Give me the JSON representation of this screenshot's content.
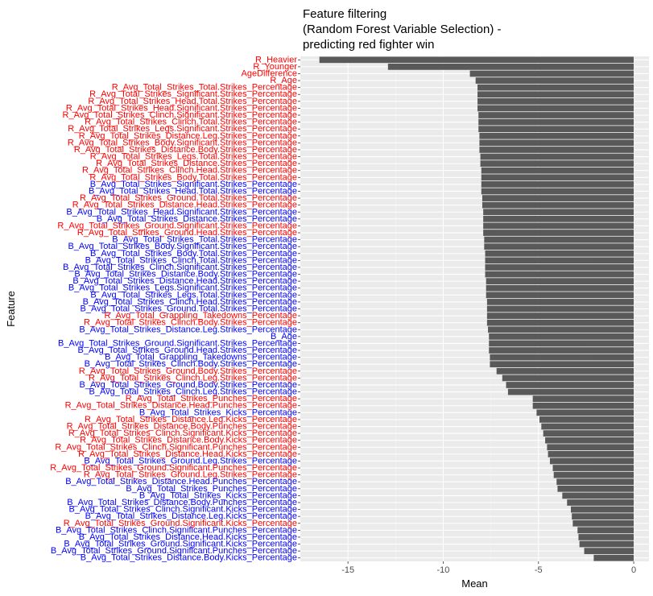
{
  "chart_data": {
    "type": "bar",
    "orientation": "horizontal",
    "title": [
      "Feature filtering",
      "(Random Forest Variable Selection) -",
      "predicting red fighter win"
    ],
    "xlabel": "Mean",
    "ylabel": "Feature",
    "xlim": [
      -17.5,
      0.8
    ],
    "xticks": [
      -15,
      -10,
      -5,
      0
    ],
    "xtick_labels": [
      "-15",
      "-10",
      "-5",
      "0"
    ],
    "grid": true,
    "colors": {
      "bar": "#595959",
      "panel": "#ebebeb",
      "grid_major": "#ffffff",
      "grid_minor": "#f5f5f5",
      "red_label": "#ff0000",
      "blue_label": "#0000ff"
    },
    "categories": [
      "R_Heavier",
      "R_Younger",
      "AgeDifference",
      "R_Age",
      "R_Avg_Total_Strikes_Total.Strikes_Percentage",
      "R_Avg_Total_Strikes_Significant.Strikes_Percentage",
      "R_Avg_Total_Strikes_Head.Total.Strikes_Percentage",
      "R_Avg_Total_Strikes_Head.Significant.Strikes_Percentage",
      "R_Avg_Total_Strikes_Clinch.Significant.Strikes_Percentage",
      "R_Avg_Total_Strikes_Clinch.Total.Strikes_Percentage",
      "R_Avg_Total_Strikes_Legs.Significant.Strikes_Percentage",
      "R_Avg_Total_Strikes_Distance.Leg.Strikes_Percentage",
      "R_Avg_Total_Strikes_Body.Significant.Strikes_Percentage",
      "R_Avg_Total_Strikes_Distance.Body.Strikes_Percentage",
      "R_Avg_Total_Strikes_Legs.Total.Strikes_Percentage",
      "R_Avg_Total_Strikes_Distance.Strikes_Percentage",
      "R_Avg_Total_Strikes_Clinch.Head.Strikes_Percentage",
      "R_Avg_Total_Strikes_Body.Total.Strikes_Percentage",
      "B_Avg_Total_Strikes_Significant.Strikes_Percentage",
      "B_Avg_Total_Strikes_Head.Total.Strikes_Percentage",
      "R_Avg_Total_Strikes_Ground.Total.Strikes_Percentage",
      "R_Avg_Total_Strikes_Distance.Head.Strikes_Percentage",
      "B_Avg_Total_Strikes_Head.Significant.Strikes_Percentage",
      "B_Avg_Total_Strikes_Distance.Strikes_Percentage",
      "R_Avg_Total_Strikes_Ground.Significant.Strikes_Percentage",
      "R_Avg_Total_Strikes_Ground.Head.Strikes_Percentage",
      "B_Avg_Total_Strikes_Total.Strikes_Percentage",
      "B_Avg_Total_Strikes_Body.Significant.Strikes_Percentage",
      "B_Avg_Total_Strikes_Body.Total.Strikes_Percentage",
      "B_Avg_Total_Strikes_Clinch.Total.Strikes_Percentage",
      "B_Avg_Total_Strikes_Clinch.Significant.Strikes_Percentage",
      "B_Avg_Total_Strikes_Distance.Body.Strikes_Percentage",
      "B_Avg_Total_Strikes_Distance.Head.Strikes_Percentage",
      "B_Avg_Total_Strikes_Legs.Significant.Strikes_Percentage",
      "B_Avg_Total_Strikes_Legs.Total.Strikes_Percentage",
      "B_Avg_Total_Strikes_Clinch.Head.Strikes_Percentage",
      "B_Avg_Total_Strikes_Ground.Total.Strikes_Percentage",
      "R_Avg_Total_Grappling_Takedowns_Percentage",
      "R_Avg_Total_Strikes_Clinch.Body.Strikes_Percentage",
      "B_Avg_Total_Strikes_Distance.Leg.Strikes_Percentage",
      "B_Age",
      "B_Avg_Total_Strikes_Ground.Significant.Strikes_Percentage",
      "B_Avg_Total_Strikes_Ground.Head.Strikes_Percentage",
      "B_Avg_Total_Grappling_Takedowns_Percentage",
      "B_Avg_Total_Strikes_Clinch.Body.Strikes_Percentage",
      "R_Avg_Total_Strikes_Ground.Body.Strikes_Percentage",
      "R_Avg_Total_Strikes_Clinch.Leg.Strikes_Percentage",
      "B_Avg_Total_Strikes_Ground.Body.Strikes_Percentage",
      "B_Avg_Total_Strikes_Clinch.Leg.Strikes_Percentage",
      "R_Avg_Total_Strikes_Punches_Percentage",
      "R_Avg_Total_Strikes_Distance.Head.Punches_Percentage",
      "B_Avg_Total_Strikes_Kicks_Percentage",
      "R_Avg_Total_Strikes_Distance.Leg.Kicks_Percentage",
      "R_Avg_Total_Strikes_Distance.Body.Punches_Percentage",
      "R_Avg_Total_Strikes_Clinch.Significant.Kicks_Percentage",
      "R_Avg_Total_Strikes_Distance.Body.Kicks_Percentage",
      "R_Avg_Total_Strikes_Clinch.Significant.Punches_Percentage",
      "R_Avg_Total_Strikes_Distance.Head.Kicks_Percentage",
      "B_Avg_Total_Strikes_Ground.Leg.Strikes_Percentage",
      "R_Avg_Total_Strikes_Ground.Significant.Punches_Percentage",
      "R_Avg_Total_Strikes_Ground.Leg.Strikes_Percentage",
      "B_Avg_Total_Strikes_Distance.Head.Punches_Percentage",
      "B_Avg_Total_Strikes_Punches_Percentage",
      "B_Avg_Total_Strikes_Kicks_Percentage",
      "B_Avg_Total_Strikes_Distance.Body.Punches_Percentage",
      "B_Avg_Total_Strikes_Clinch.Significant.Kicks_Percentage",
      "B_Avg_Total_Strikes_Distance.Leg.Kicks_Percentage",
      "R_Avg_Total_Strikes_Ground.Significant.Kicks_Percentage",
      "B_Avg_Total_Strikes_Clinch.Significant.Punches_Percentage",
      "B_Avg_Total_Strikes_Distance.Head.Kicks_Percentage",
      "B_Avg_Total_Strikes_Ground.Significant.Kicks_Percentage",
      "B_Avg_Total_Strikes_Ground.Significant.Punches_Percentage",
      "B_Avg_Total_Strikes_Distance.Body.Kicks_Percentage"
    ],
    "label_colors": [
      "red",
      "red",
      "red",
      "red",
      "red",
      "red",
      "red",
      "red",
      "red",
      "red",
      "red",
      "red",
      "red",
      "red",
      "red",
      "red",
      "red",
      "red",
      "blue",
      "blue",
      "red",
      "red",
      "blue",
      "blue",
      "red",
      "red",
      "blue",
      "blue",
      "blue",
      "blue",
      "blue",
      "blue",
      "blue",
      "blue",
      "blue",
      "blue",
      "blue",
      "red",
      "red",
      "blue",
      "blue",
      "blue",
      "blue",
      "blue",
      "blue",
      "red",
      "red",
      "blue",
      "blue",
      "red",
      "red",
      "blue",
      "red",
      "red",
      "red",
      "red",
      "red",
      "red",
      "blue",
      "red",
      "red",
      "blue",
      "blue",
      "blue",
      "blue",
      "blue",
      "blue",
      "red",
      "blue",
      "blue",
      "blue",
      "blue",
      "blue"
    ],
    "values": [
      -16.5,
      -12.9,
      -8.6,
      -8.3,
      -8.2,
      -8.2,
      -8.2,
      -8.2,
      -8.15,
      -8.15,
      -8.15,
      -8.1,
      -8.1,
      -8.1,
      -8.05,
      -8.05,
      -8.0,
      -8.0,
      -8.0,
      -8.0,
      -7.95,
      -7.95,
      -7.9,
      -7.9,
      -7.9,
      -7.9,
      -7.85,
      -7.85,
      -7.8,
      -7.8,
      -7.8,
      -7.8,
      -7.75,
      -7.75,
      -7.75,
      -7.7,
      -7.7,
      -7.7,
      -7.7,
      -7.65,
      -7.6,
      -7.6,
      -7.6,
      -7.55,
      -7.55,
      -7.2,
      -6.9,
      -6.7,
      -6.6,
      -5.3,
      -5.3,
      -5.1,
      -4.95,
      -4.85,
      -4.75,
      -4.65,
      -4.55,
      -4.5,
      -4.4,
      -4.25,
      -4.2,
      -4.05,
      -4.0,
      -3.75,
      -3.5,
      -3.3,
      -3.25,
      -3.2,
      -2.95,
      -2.9,
      -2.85,
      -2.6,
      -2.1
    ]
  }
}
